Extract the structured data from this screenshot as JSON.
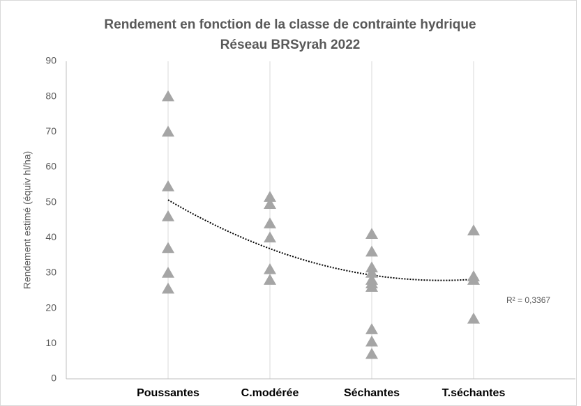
{
  "chart_data": {
    "type": "scatter",
    "title": "Rendement en fonction de la classe de contrainte hydrique",
    "subtitle": "Réseau BRSyrah 2022",
    "y_label": "Rendement estimé (équiv hl/ha)",
    "categories": [
      "Poussantes",
      "C.modérée",
      "Séchantes",
      "T.séchantes"
    ],
    "values": [
      [
        80,
        70,
        54.5,
        46,
        37,
        30,
        25.5
      ],
      [
        51.5,
        49.5,
        44,
        40,
        31,
        28
      ],
      [
        41,
        36,
        31.5,
        30,
        28,
        27,
        26,
        14,
        10.5,
        7
      ],
      [
        42,
        29,
        28,
        17
      ]
    ],
    "color": "#a5a5a5",
    "marker": "triangle",
    "ylim": [
      0,
      90
    ],
    "yticks": [
      0,
      10,
      20,
      30,
      40,
      50,
      60,
      70,
      80,
      90
    ],
    "grid": "x",
    "trendline": {
      "kind": "polynomial",
      "coefficients": [
        70.8,
        -23.25,
        3.15
      ],
      "label": "R² = 0,3367"
    }
  }
}
